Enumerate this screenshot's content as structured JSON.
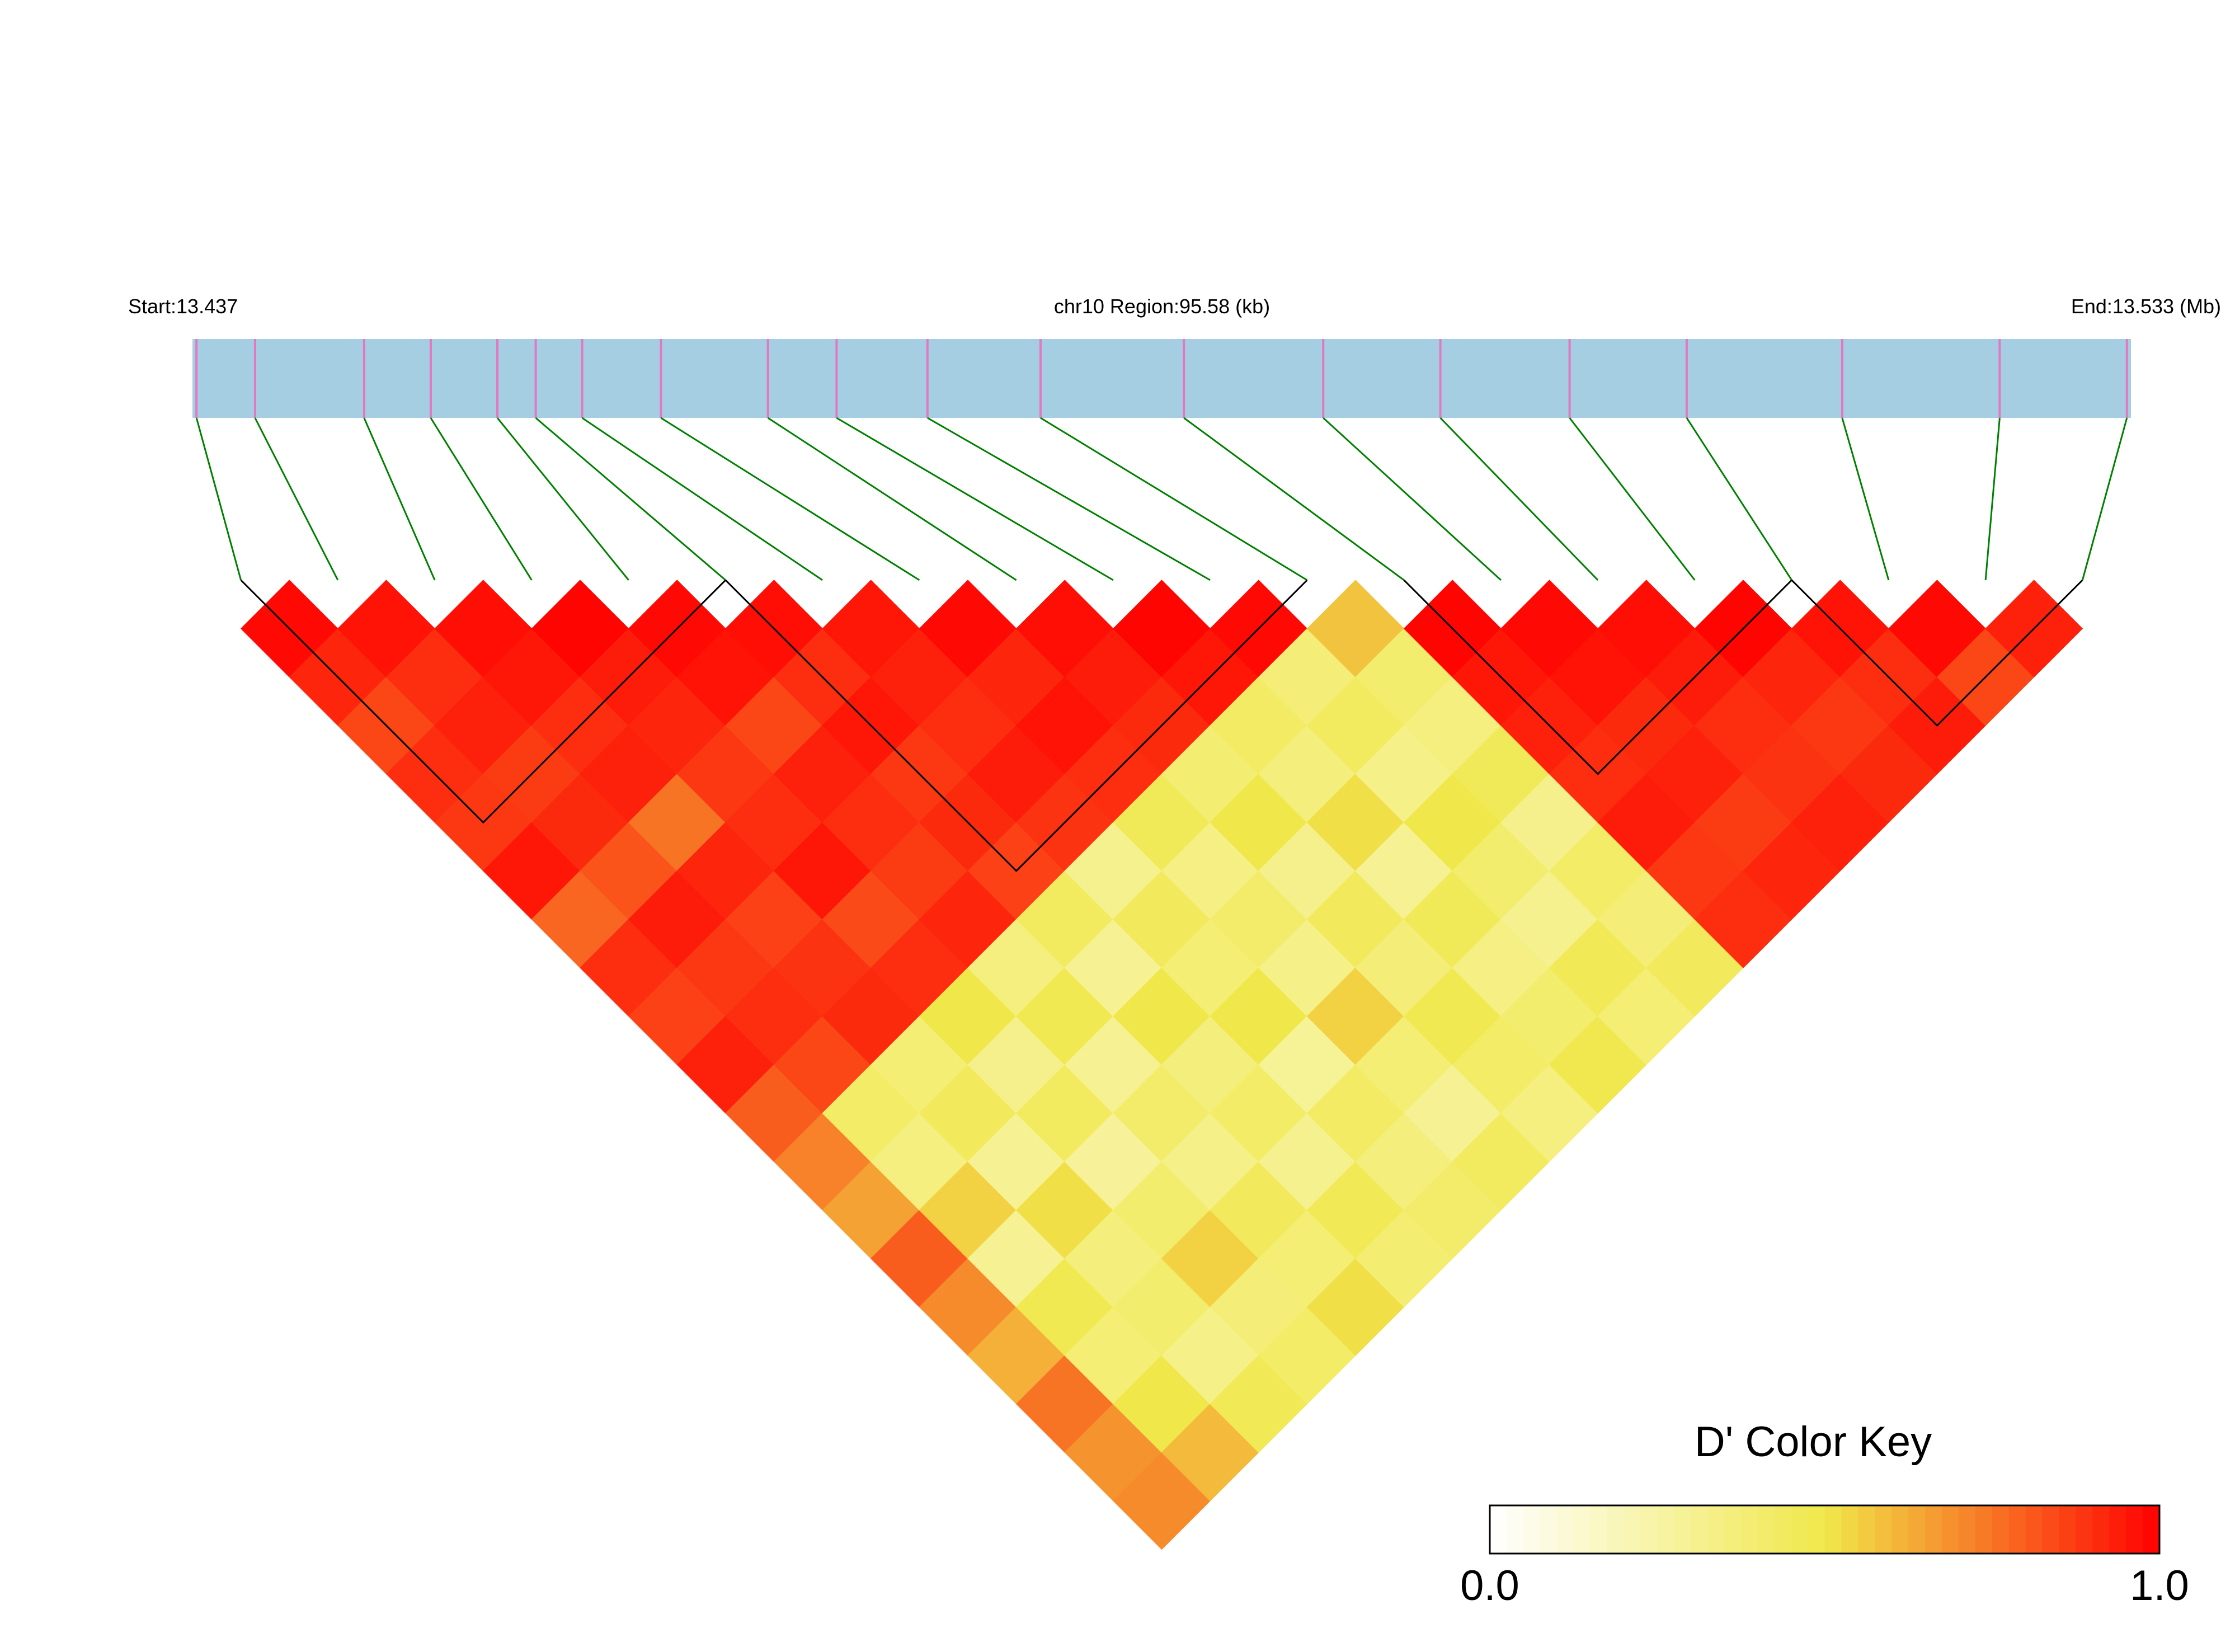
{
  "chart_data": {
    "type": "ld-heatmap",
    "start_label": "Start:13.437",
    "region_label": "chr10 Region:95.58 (kb)",
    "end_label": "End:13.533 (Mb)",
    "legend_title": "D' Color Key",
    "xlim": [
      13.437,
      13.533
    ],
    "x": [
      13.4372,
      13.4401,
      13.4455,
      13.4488,
      13.4521,
      13.454,
      13.4563,
      13.4602,
      13.4655,
      13.4689,
      13.4734,
      13.479,
      13.4861,
      13.493,
      13.4988,
      13.5052,
      13.511,
      13.5187,
      13.5265,
      13.5328
    ],
    "values": [
      [
        0.98,
        0.92,
        0.85,
        0.9,
        0.88,
        0.95,
        0.78,
        0.9,
        0.86,
        0.93,
        0.8,
        0.72,
        0.65,
        0.8,
        0.7,
        0.62,
        0.75,
        0.68,
        0.7
      ],
      [
        0.96,
        0.9,
        0.93,
        0.87,
        0.91,
        0.82,
        0.94,
        0.88,
        0.9,
        0.85,
        0.42,
        0.35,
        0.55,
        0.3,
        0.48,
        0.38,
        0.5,
        0.6
      ],
      [
        0.97,
        0.95,
        0.9,
        0.93,
        0.75,
        0.92,
        0.86,
        0.89,
        0.91,
        0.38,
        0.45,
        0.3,
        0.52,
        0.36,
        0.4,
        0.33,
        0.47
      ],
      [
        0.99,
        0.94,
        0.92,
        0.88,
        0.9,
        0.95,
        0.84,
        0.9,
        0.5,
        0.32,
        0.44,
        0.28,
        0.4,
        0.55,
        0.37,
        0.42
      ],
      [
        0.98,
        0.96,
        0.85,
        0.93,
        0.9,
        0.87,
        0.92,
        0.35,
        0.48,
        0.3,
        0.41,
        0.33,
        0.45,
        0.38,
        0.52
      ],
      [
        0.97,
        0.9,
        0.95,
        0.88,
        0.91,
        0.86,
        0.44,
        0.3,
        0.5,
        0.36,
        0.42,
        0.31,
        0.47,
        0.39
      ],
      [
        0.95,
        0.93,
        0.9,
        0.94,
        0.89,
        0.31,
        0.45,
        0.38,
        0.5,
        0.29,
        0.43,
        0.36,
        0.41
      ],
      [
        0.98,
        0.92,
        0.96,
        0.9,
        0.46,
        0.34,
        0.41,
        0.33,
        0.55,
        0.38,
        0.3,
        0.44
      ],
      [
        0.97,
        0.94,
        0.91,
        0.39,
        0.5,
        0.32,
        0.45,
        0.37,
        0.48,
        0.42,
        0.35
      ],
      [
        0.99,
        0.95,
        0.43,
        0.36,
        0.52,
        0.3,
        0.46,
        0.34,
        0.4,
        0.49
      ],
      [
        0.98,
        0.37,
        0.44,
        0.33,
        0.5,
        0.4,
        0.31,
        0.47,
        0.38
      ],
      [
        0.58,
        0.4,
        0.35,
        0.46,
        0.32,
        0.42,
        0.37,
        0.45
      ],
      [
        0.99,
        0.95,
        0.93,
        0.9,
        0.94,
        0.88,
        0.9
      ],
      [
        0.98,
        0.96,
        0.91,
        0.93,
        0.87,
        0.92
      ],
      [
        0.97,
        0.94,
        0.9,
        0.89,
        0.93
      ],
      [
        0.99,
        0.92,
        0.88,
        0.91
      ],
      [
        0.96,
        0.9,
        0.94
      ],
      [
        0.98,
        0.85
      ],
      [
        0.93
      ]
    ],
    "blocks": [
      [
        0,
        5
      ],
      [
        5,
        11
      ],
      [
        12,
        16
      ],
      [
        16,
        19
      ]
    ],
    "colors": [
      "#ffffff",
      "#f0e84a",
      "#ff0000"
    ],
    "clim": [
      0,
      1
    ],
    "cticks": [
      {
        "value": 0,
        "label": "0.0"
      },
      {
        "value": 1,
        "label": "1.0"
      }
    ],
    "bar_color": "#a6cee3",
    "snp_color": "#e377c2",
    "link_color": "#008000"
  }
}
